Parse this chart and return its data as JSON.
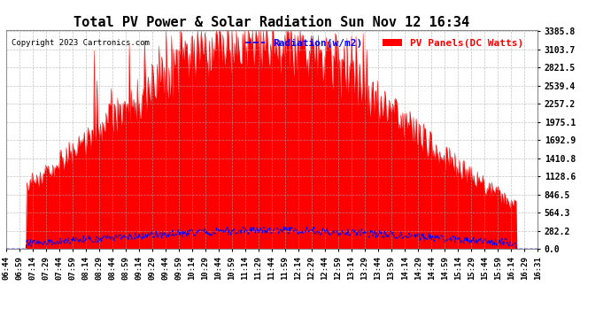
{
  "title": "Total PV Power & Solar Radiation Sun Nov 12 16:34",
  "copyright": "Copyright 2023 Cartronics.com",
  "legend_radiation": "Radiation(w/m2)",
  "legend_pv": "PV Panels(DC Watts)",
  "radiation_color": "#0000ff",
  "pv_color": "#ff0000",
  "pv_fill_color": "#ff0000",
  "background_color": "#ffffff",
  "grid_color": "#aaaaaa",
  "y_ticks": [
    0.0,
    282.2,
    564.3,
    846.5,
    1128.6,
    1410.8,
    1692.9,
    1975.1,
    2257.2,
    2539.4,
    2821.5,
    3103.7,
    3385.8
  ],
  "y_max": 3385.8,
  "y_min": 0.0,
  "n_points": 592,
  "title_fontsize": 11,
  "tick_fontsize": 7,
  "copyright_fontsize": 6.5,
  "legend_fontsize": 8
}
